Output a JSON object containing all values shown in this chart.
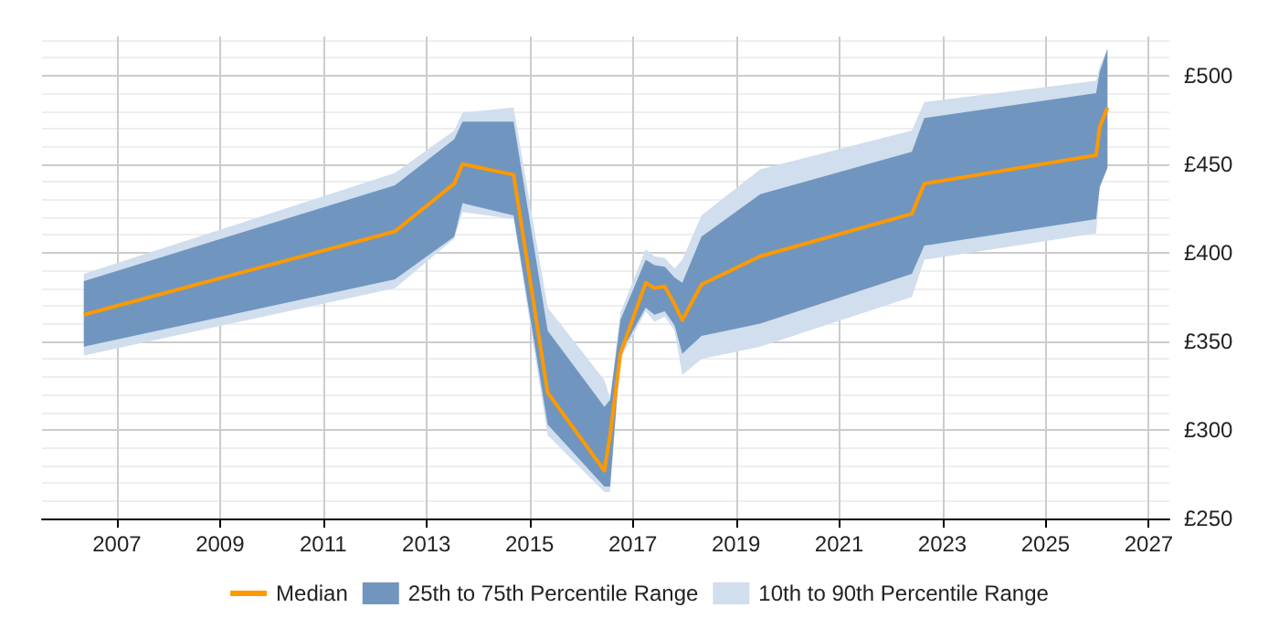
{
  "chart_data": {
    "type": "area",
    "x": [
      2006.36,
      2012.39,
      2013.54,
      2013.7,
      2014.69,
      2015.35,
      2016.45,
      2016.56,
      2016.76,
      2017.25,
      2017.42,
      2017.62,
      2017.81,
      2017.96,
      2018.33,
      2019.47,
      2022.41,
      2022.65,
      2025.98,
      2026.05,
      2026.2
    ],
    "series": [
      {
        "name": "10th to 90th Percentile Range",
        "color": "#d0deee",
        "values": [
          null,
          null,
          null,
          null,
          null,
          null,
          null,
          null,
          null,
          null,
          null,
          null,
          null,
          null,
          null,
          null,
          null,
          null,
          null,
          null,
          null
        ],
        "lower": [
          342,
          380,
          408,
          423,
          419,
          297,
          265,
          265,
          340,
          367,
          361,
          364,
          356,
          331,
          340,
          347,
          375,
          396,
          411,
          437,
          448
        ],
        "upper": [
          388,
          445,
          469,
          479,
          482,
          369,
          328,
          318,
          366,
          402,
          398,
          397,
          391,
          396,
          421,
          447,
          469,
          485,
          497,
          505,
          515
        ]
      },
      {
        "name": "25th to 75th Percentile Range",
        "color": "#7096bf",
        "values": [
          null,
          null,
          null,
          null,
          null,
          null,
          null,
          null,
          null,
          null,
          null,
          null,
          null,
          null,
          null,
          null,
          null,
          null,
          null,
          null,
          null
        ],
        "lower": [
          347,
          385,
          409,
          428,
          421,
          303,
          268,
          268,
          343,
          369,
          365,
          367,
          359,
          343,
          353,
          360,
          388,
          404,
          419,
          437,
          448
        ],
        "upper": [
          384,
          438,
          464,
          474,
          474,
          356,
          313,
          317,
          362,
          396,
          393,
          392,
          386,
          383,
          409,
          433,
          457,
          476,
          490,
          502,
          515
        ]
      },
      {
        "name": "Median",
        "type": "line",
        "color": "#ff9900",
        "values": [
          365,
          412,
          439,
          450,
          444,
          321,
          277,
          297,
          343,
          383,
          380,
          381,
          371,
          362,
          382,
          398,
          422,
          439,
          455,
          471,
          482
        ]
      }
    ],
    "xlim": [
      2005.55,
      2027.4
    ],
    "xticks": [
      2007,
      2009,
      2011,
      2013,
      2015,
      2017,
      2019,
      2021,
      2023,
      2025,
      2027
    ],
    "ylim": [
      250,
      522
    ],
    "yticks": [
      {
        "value": 250,
        "label": "£250"
      },
      {
        "value": 300,
        "label": "£300"
      },
      {
        "value": 350,
        "label": "£350"
      },
      {
        "value": 400,
        "label": "£400"
      },
      {
        "value": 450,
        "label": "£450"
      },
      {
        "value": 500,
        "label": "£500"
      }
    ],
    "grid": true,
    "legend": "bottom",
    "marker": "none",
    "line_style": "solid"
  }
}
